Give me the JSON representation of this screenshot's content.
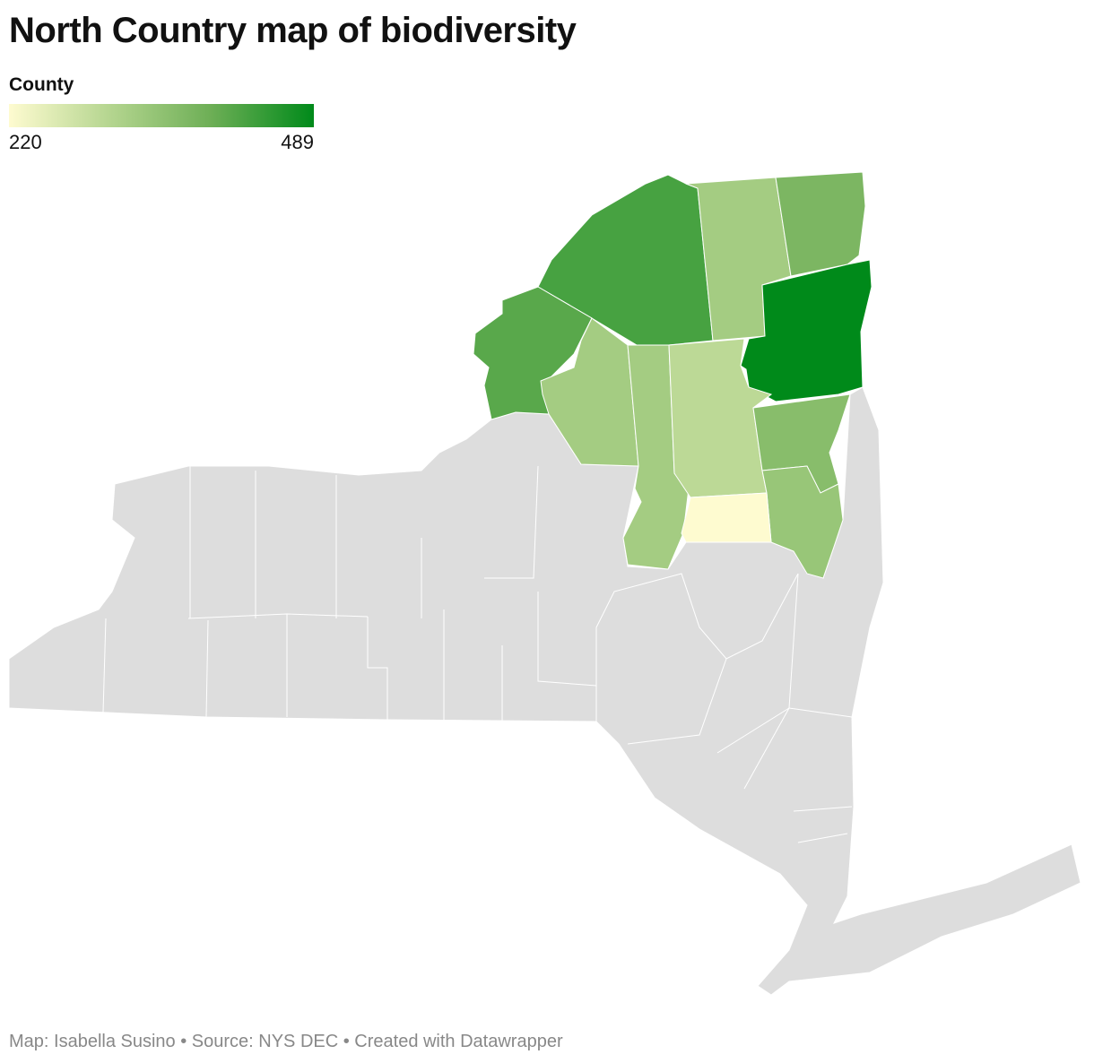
{
  "title": "North Country map of biodiversity",
  "legend": {
    "title": "County",
    "min": 220,
    "max": 489,
    "colors": [
      "#fefbd0",
      "#b4d58f",
      "#6cae55",
      "#008a1a"
    ]
  },
  "map": {
    "values": [
      430,
      330,
      380,
      489,
      415,
      330,
      330,
      300,
      365,
      345,
      220
    ],
    "base_color": "#dddddd"
  },
  "footer": "Map: Isabella Susino • Source: NYS DEC • Created with Datawrapper"
}
